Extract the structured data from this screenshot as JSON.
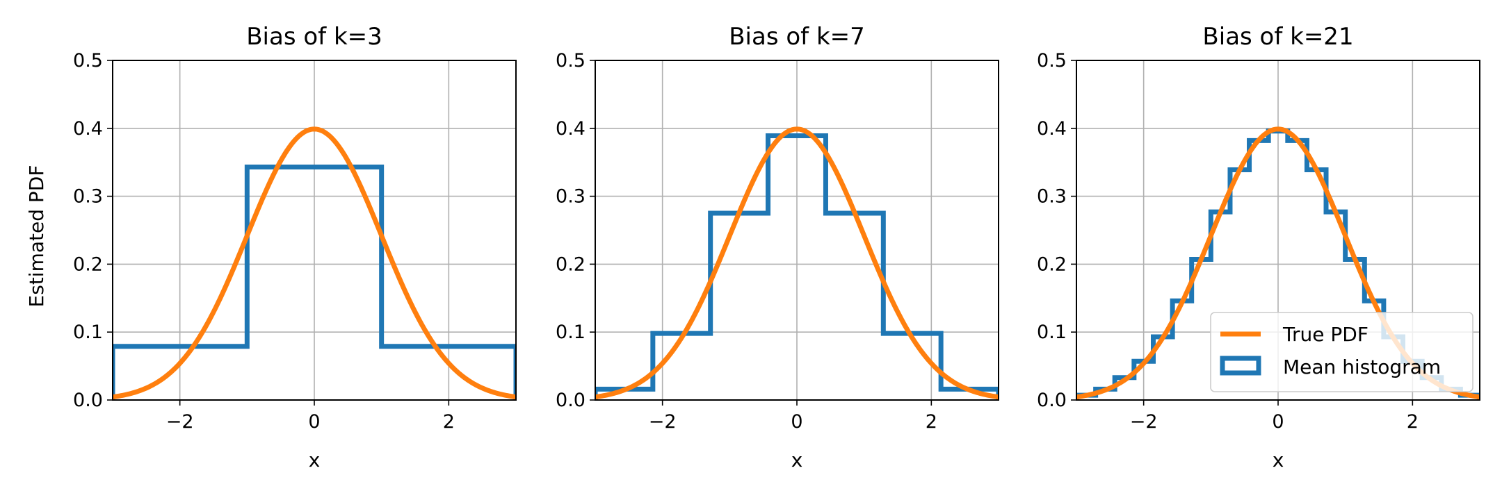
{
  "figure": {
    "ylabel": "Estimated PDF"
  },
  "colors": {
    "histogram": "#1f77b4",
    "pdf": "#ff7f0e",
    "grid": "#b0b0b0",
    "axes": "#000000"
  },
  "chart_data": [
    {
      "type": "line",
      "title": "Bias of k=3",
      "xlabel": "x",
      "ylabel": "Estimated PDF",
      "xlim": [
        -3,
        3
      ],
      "ylim": [
        0,
        0.5
      ],
      "grid": true,
      "xticks": [
        -2,
        0,
        2
      ],
      "xtick_labels": [
        "−2",
        "0",
        "2"
      ],
      "yticks": [
        0.0,
        0.1,
        0.2,
        0.3,
        0.4,
        0.5
      ],
      "ytick_labels": [
        "0.0",
        "0.1",
        "0.2",
        "0.3",
        "0.4",
        "0.5"
      ],
      "series": [
        {
          "name": "Mean histogram",
          "kind": "step",
          "bin_edges": [
            -3,
            -1,
            1,
            3
          ],
          "values": [
            0.079,
            0.343,
            0.079
          ]
        },
        {
          "name": "True PDF",
          "kind": "normal_pdf",
          "mean": 0,
          "std": 1
        }
      ]
    },
    {
      "type": "line",
      "title": "Bias of k=7",
      "xlabel": "x",
      "ylabel": "",
      "xlim": [
        -3,
        3
      ],
      "ylim": [
        0,
        0.5
      ],
      "grid": true,
      "xticks": [
        -2,
        0,
        2
      ],
      "xtick_labels": [
        "−2",
        "0",
        "2"
      ],
      "yticks": [
        0.0,
        0.1,
        0.2,
        0.3,
        0.4,
        0.5
      ],
      "ytick_labels": [
        "0.0",
        "0.1",
        "0.2",
        "0.3",
        "0.4",
        "0.5"
      ],
      "series": [
        {
          "name": "Mean histogram",
          "kind": "step",
          "bin_edges": [
            -3,
            -2.143,
            -1.286,
            -0.429,
            0.429,
            1.286,
            2.143,
            3
          ],
          "values": [
            0.016,
            0.098,
            0.275,
            0.389,
            0.275,
            0.098,
            0.016
          ]
        },
        {
          "name": "True PDF",
          "kind": "normal_pdf",
          "mean": 0,
          "std": 1
        }
      ]
    },
    {
      "type": "line",
      "title": "Bias of k=21",
      "xlabel": "x",
      "ylabel": "",
      "xlim": [
        -3,
        3
      ],
      "ylim": [
        0,
        0.5
      ],
      "grid": true,
      "legend": "lower-right",
      "xticks": [
        -2,
        0,
        2
      ],
      "xtick_labels": [
        "−2",
        "0",
        "2"
      ],
      "yticks": [
        0.0,
        0.1,
        0.2,
        0.3,
        0.4,
        0.5
      ],
      "ytick_labels": [
        "0.0",
        "0.1",
        "0.2",
        "0.3",
        "0.4",
        "0.5"
      ],
      "series": [
        {
          "name": "Mean histogram",
          "kind": "step",
          "bin_edges": [
            -3,
            -2.714,
            -2.429,
            -2.143,
            -1.857,
            -1.571,
            -1.286,
            -1.0,
            -0.714,
            -0.429,
            -0.143,
            0.143,
            0.429,
            0.714,
            1.0,
            1.286,
            1.571,
            1.857,
            2.143,
            2.429,
            2.714,
            3
          ],
          "values": [
            0.007,
            0.016,
            0.033,
            0.057,
            0.093,
            0.146,
            0.207,
            0.277,
            0.339,
            0.382,
            0.396,
            0.382,
            0.339,
            0.277,
            0.207,
            0.146,
            0.093,
            0.057,
            0.033,
            0.016,
            0.007
          ]
        },
        {
          "name": "True PDF",
          "kind": "normal_pdf",
          "mean": 0,
          "std": 1
        }
      ]
    }
  ]
}
